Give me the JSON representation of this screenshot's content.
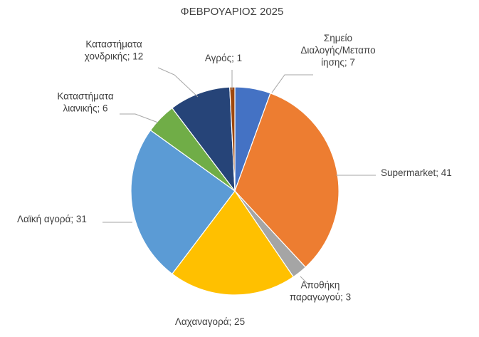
{
  "chart_data": {
    "type": "pie",
    "title": "ΦΕΒΡΟΥΑΡΙΟΣ 2025",
    "slices": [
      {
        "label": "Σημείο Διαλογής/Μεταποίησης",
        "value": 7,
        "color": "#4472C4",
        "data_label_lines": [
          "Σημείο",
          "Διαλογής/Μεταπο",
          "ίησης; 7"
        ]
      },
      {
        "label": "Supermarket",
        "value": 41,
        "color": "#ED7D31",
        "data_label_lines": [
          "Supermarket; 41"
        ]
      },
      {
        "label": "Αποθήκη παραγωγού",
        "value": 3,
        "color": "#A5A5A5",
        "data_label_lines": [
          "Αποθήκη",
          "παραγωγού; 3"
        ]
      },
      {
        "label": "Λαχαναγορά",
        "value": 25,
        "color": "#FFC000",
        "data_label_lines": [
          "Λαχαναγορά; 25"
        ]
      },
      {
        "label": "Λαϊκή αγορά",
        "value": 31,
        "color": "#5B9BD5",
        "data_label_lines": [
          "Λαϊκή αγορά; 31"
        ]
      },
      {
        "label": "Καταστήματα λιανικής",
        "value": 6,
        "color": "#70AD47",
        "data_label_lines": [
          "Καταστήματα",
          "λιανικής; 6"
        ]
      },
      {
        "label": "Καταστήματα χονδρικής",
        "value": 12,
        "color": "#264478",
        "data_label_lines": [
          "Καταστήματα",
          "χονδρικής; 12"
        ]
      },
      {
        "label": "Αγρός",
        "value": 1,
        "color": "#9E480E",
        "data_label_lines": [
          "Αγρός; 1"
        ]
      }
    ],
    "legend": "none"
  }
}
